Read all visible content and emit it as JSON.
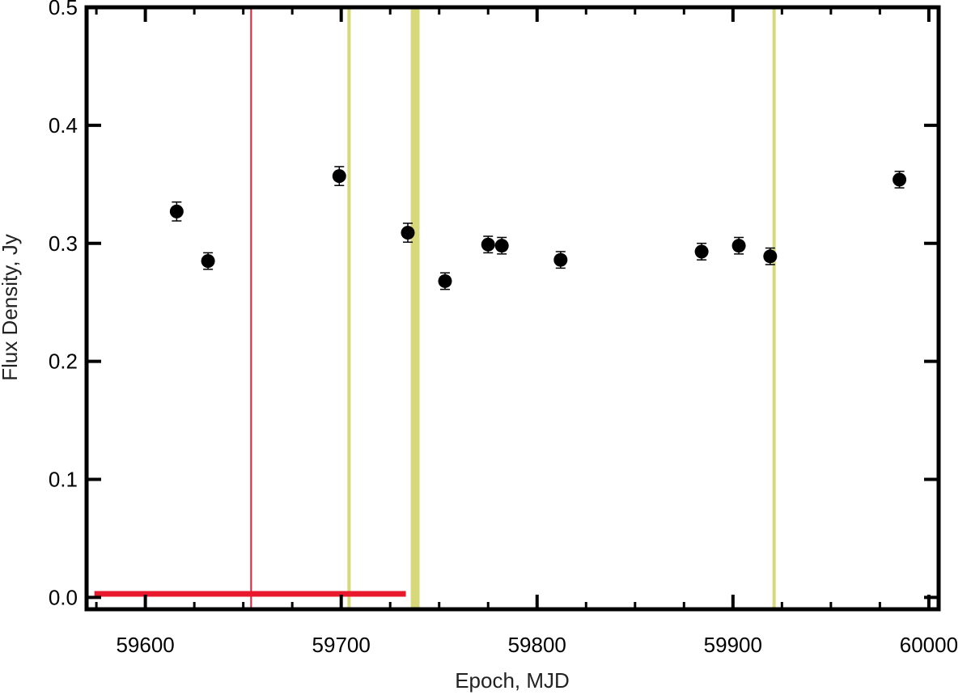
{
  "chart_data": {
    "type": "scatter",
    "xlabel": "Epoch, MJD",
    "ylabel": "Flux Density, Jy",
    "xlim": [
      59570,
      60005
    ],
    "ylim": [
      -0.01,
      0.5
    ],
    "x_ticks": [
      59600,
      59700,
      59800,
      59900,
      60000
    ],
    "x_tick_labels": [
      "59600",
      "59700",
      "59800",
      "59900",
      "60000"
    ],
    "y_ticks": [
      0.0,
      0.1,
      0.2,
      0.3,
      0.4,
      0.5
    ],
    "y_tick_labels": [
      "0.0",
      "0.1",
      "0.2",
      "0.3",
      "0.4",
      "0.5"
    ],
    "grid": false,
    "points": [
      {
        "x": 59616,
        "y": 0.327,
        "err": 0.008
      },
      {
        "x": 59632,
        "y": 0.285,
        "err": 0.007
      },
      {
        "x": 59699,
        "y": 0.357,
        "err": 0.008
      },
      {
        "x": 59734,
        "y": 0.309,
        "err": 0.008
      },
      {
        "x": 59753,
        "y": 0.268,
        "err": 0.007
      },
      {
        "x": 59775,
        "y": 0.299,
        "err": 0.007
      },
      {
        "x": 59782,
        "y": 0.298,
        "err": 0.007
      },
      {
        "x": 59812,
        "y": 0.286,
        "err": 0.007
      },
      {
        "x": 59884,
        "y": 0.293,
        "err": 0.007
      },
      {
        "x": 59903,
        "y": 0.298,
        "err": 0.007
      },
      {
        "x": 59919,
        "y": 0.289,
        "err": 0.007
      },
      {
        "x": 59985,
        "y": 0.354,
        "err": 0.007
      }
    ],
    "vertical_lines": [
      {
        "x": 59654,
        "color": "#e8192c"
      },
      {
        "x": 59704,
        "color": "#d6d87a"
      },
      {
        "x": 59921,
        "color": "#d6d87a"
      }
    ],
    "vertical_bands": [
      {
        "x_start": 59735.5,
        "x_end": 59740,
        "color": "#d6d87a"
      }
    ],
    "horizontal_segments": [
      {
        "x_start": 59574,
        "x_end": 59733,
        "y": 0.003,
        "color": "#e8192c"
      }
    ],
    "marker_color": "#000000"
  }
}
